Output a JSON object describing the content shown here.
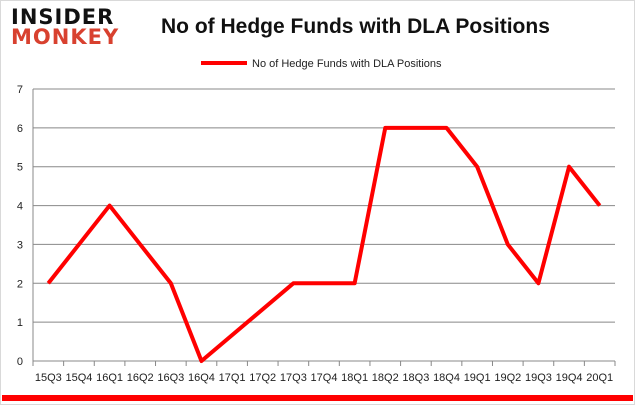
{
  "logo": {
    "line1": "INSIDER",
    "line2": "MONKEY"
  },
  "chart_data": {
    "type": "line",
    "title": "No of Hedge Funds with DLA Positions",
    "categories": [
      "15Q3",
      "15Q4",
      "16Q1",
      "16Q2",
      "16Q3",
      "16Q4",
      "17Q1",
      "17Q2",
      "17Q3",
      "17Q4",
      "18Q1",
      "18Q2",
      "18Q3",
      "18Q4",
      "19Q1",
      "19Q2",
      "19Q3",
      "19Q4",
      "20Q1"
    ],
    "series": [
      {
        "name": "No of Hedge Funds with DLA Positions",
        "color": "#ff0000",
        "values": [
          2,
          3,
          4,
          3,
          2,
          0,
          null,
          null,
          2,
          2,
          2,
          6,
          6,
          6,
          5,
          3,
          2,
          5,
          4
        ]
      }
    ],
    "ylim": [
      0,
      7
    ],
    "yticks": [
      0,
      1,
      2,
      3,
      4,
      5,
      6,
      7
    ],
    "grid": true,
    "legend": "top"
  }
}
